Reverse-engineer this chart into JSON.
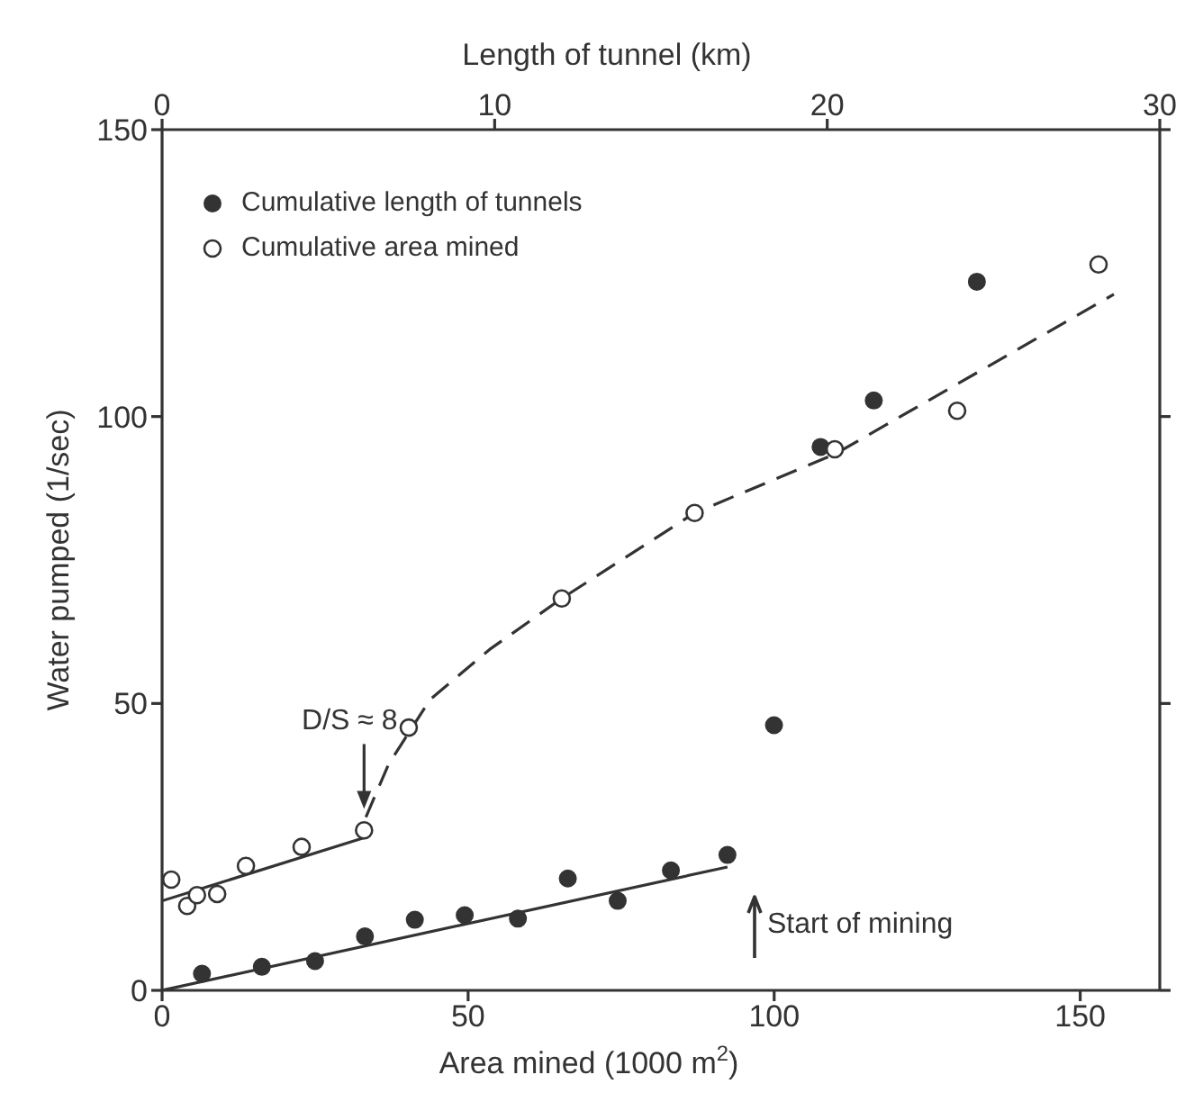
{
  "chart_data": {
    "type": "scatter",
    "xlabel": "Area mined (1000 m$^{2}$)",
    "x2label": "Length of tunnel (km)",
    "ylabel": "Water pumped (1/sec)",
    "xlim": [
      0,
      163
    ],
    "xticks": [
      0,
      50,
      100,
      150
    ],
    "x2lim": [
      0,
      30
    ],
    "x2ticks": [
      0,
      10,
      20,
      30
    ],
    "ylim": [
      0,
      150
    ],
    "yticks": [
      0,
      50,
      100,
      150
    ],
    "grid": false,
    "legend": "top left",
    "series": [
      {
        "name": "Cumulative length of tunnels",
        "axis": "x2",
        "marker": "circle",
        "color": "#333333",
        "x": [
          1.2,
          3.0,
          4.6,
          6.1,
          7.6,
          9.1,
          10.7,
          12.2,
          13.7,
          15.3,
          17.0,
          18.4,
          19.8,
          21.4,
          24.5
        ],
        "values": [
          2.9,
          4.1,
          5.1,
          9.4,
          12.3,
          13.1,
          12.5,
          19.5,
          15.6,
          20.9,
          23.6,
          46.2,
          94.7,
          102.8,
          123.5
        ]
      },
      {
        "name": "Cumulative area mined",
        "marker": "circle-open",
        "color": "#333333",
        "x": [
          1.5,
          4.1,
          5.7,
          9.0,
          13.7,
          22.8,
          33.0,
          40.3,
          65.3,
          87.0,
          109.9,
          129.9,
          153.0
        ],
        "values": [
          19.3,
          14.7,
          16.6,
          16.8,
          21.7,
          25.0,
          27.9,
          45.8,
          68.3,
          83.2,
          94.3,
          101,
          126.5
        ]
      },
      {
        "type": "line",
        "axis": "x2",
        "marker": "none",
        "line_style": "solid",
        "color": "#333333",
        "x": [
          0,
          17.0
        ],
        "values": [
          0,
          21.5
        ]
      },
      {
        "type": "line",
        "marker": "none",
        "line_style": "solid",
        "color": "#333333",
        "x": [
          0,
          33.0
        ],
        "values": [
          15.6,
          26.6
        ]
      },
      {
        "type": "line",
        "marker": "none",
        "line_style": "dashed",
        "color": "#333333",
        "x": [
          33.3,
          37,
          43.8,
          53.5,
          65.3,
          87.0,
          110,
          155.5
        ],
        "values": [
          30.2,
          39.4,
          50.7,
          59.4,
          68.3,
          83.2,
          93.5,
          121.3
        ]
      }
    ],
    "annotations": [
      {
        "text": "D/S ≈ 8",
        "x": 33,
        "y": 31
      },
      "Start of mining"
    ]
  }
}
